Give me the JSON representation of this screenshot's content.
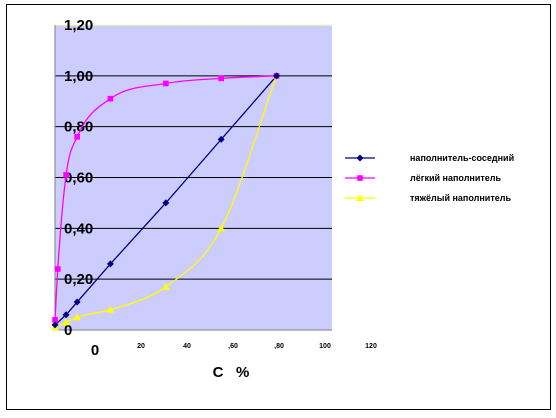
{
  "chart_data": {
    "type": "line",
    "title": "",
    "xlabel": "С   %",
    "ylabel": "",
    "xlim": [
      0,
      100
    ],
    "ylim": [
      0,
      1.2
    ],
    "y_ticks": [
      "0",
      "0,20",
      "0,40",
      "0,60",
      "0,80",
      "1,00",
      "1,20"
    ],
    "x_ticks": [
      {
        "label": "0",
        "size": "big"
      },
      {
        "label": "20",
        "size": "small"
      },
      {
        "label": "40",
        "size": "small"
      },
      {
        "label": ",60",
        "size": "small"
      },
      {
        "label": ",80",
        "size": "small"
      },
      {
        "label": "100",
        "size": "small"
      },
      {
        "label": "120",
        "size": "small"
      }
    ],
    "plot_background": "#ccccff",
    "grid": "horizontal",
    "legend_position": "right",
    "series": [
      {
        "name": "наполнитель-соседний",
        "color": "#000080",
        "marker": "diamond",
        "smooth": false,
        "x": [
          0,
          4,
          8,
          20,
          40,
          60,
          80
        ],
        "y": [
          0.02,
          0.06,
          0.11,
          0.26,
          0.5,
          0.75,
          1.0
        ]
      },
      {
        "name": "лёгкий наполнитель",
        "color": "#ff00ff",
        "marker": "square",
        "smooth": true,
        "x": [
          0,
          1,
          4,
          8,
          20,
          40,
          60,
          80
        ],
        "y": [
          0.04,
          0.24,
          0.61,
          0.76,
          0.91,
          0.97,
          0.99,
          1.0
        ]
      },
      {
        "name": "тяжёлый наполнитель",
        "color": "#ffff00",
        "marker": "triangle",
        "smooth": true,
        "x": [
          0,
          4,
          8,
          20,
          40,
          60,
          80
        ],
        "y": [
          0.01,
          0.03,
          0.05,
          0.08,
          0.17,
          0.4,
          1.0
        ]
      }
    ]
  }
}
